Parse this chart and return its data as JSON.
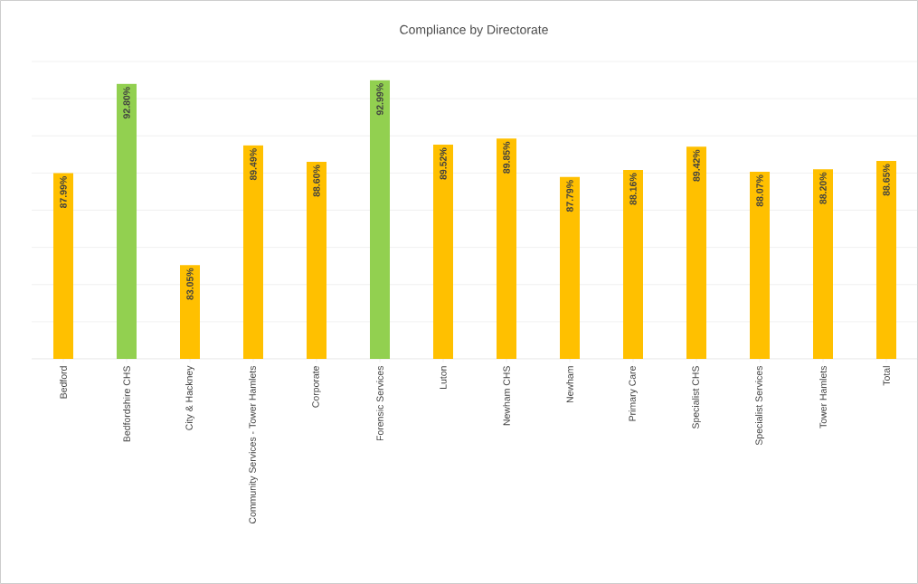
{
  "chart_data": {
    "type": "bar",
    "title": "Compliance by Directorate",
    "categories": [
      "Bedford",
      "Bedfordshire CHS",
      "City & Hackney",
      "Community Services - Tower Hamlets",
      "Corporate",
      "Forensic Services",
      "Luton",
      "Newham CHS",
      "Newham",
      "Primary Care",
      "Specialist CHS",
      "Specialist Services",
      "Tower Hamlets",
      "Total"
    ],
    "values": [
      87.99,
      92.8,
      83.05,
      89.49,
      88.6,
      92.99,
      89.52,
      89.85,
      87.79,
      88.16,
      89.42,
      88.07,
      88.2,
      88.65
    ],
    "value_labels": [
      "87.99%",
      "92.80%",
      "83.05%",
      "89.49%",
      "88.60%",
      "92.99%",
      "89.52%",
      "89.85%",
      "87.79%",
      "88.16%",
      "89.42%",
      "88.07%",
      "88.20%",
      "88.65%"
    ],
    "colors": [
      "#ffc000",
      "#92d050",
      "#ffc000",
      "#ffc000",
      "#ffc000",
      "#92d050",
      "#ffc000",
      "#ffc000",
      "#ffc000",
      "#ffc000",
      "#ffc000",
      "#ffc000",
      "#ffc000",
      "#ffc000"
    ],
    "ylim": [
      78,
      94
    ],
    "yticks": [
      78,
      80,
      82,
      84,
      86,
      88,
      90,
      92,
      94
    ],
    "grid": "y",
    "tick_labels": "x"
  }
}
